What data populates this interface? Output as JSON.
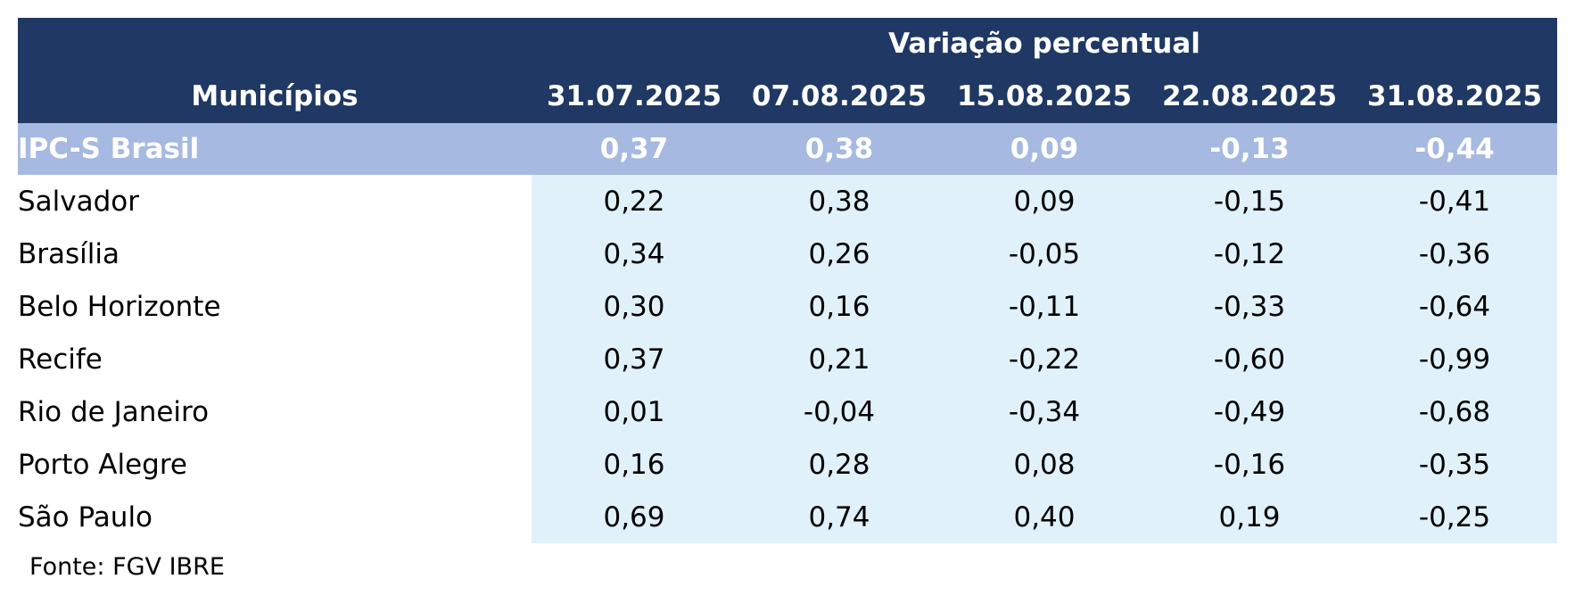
{
  "chart_data": {
    "type": "table",
    "group_header": "Variação percentual",
    "row_header": "Municípios",
    "columns": [
      "31.07.2025",
      "07.08.2025",
      "15.08.2025",
      "22.08.2025",
      "31.08.2025"
    ],
    "summary_row": {
      "name": "IPC-S Brasil",
      "values": [
        "0,37",
        "0,38",
        "0,09",
        "-0,13",
        "-0,44"
      ]
    },
    "rows": [
      {
        "name": "Salvador",
        "values": [
          "0,22",
          "0,38",
          "0,09",
          "-0,15",
          "-0,41"
        ]
      },
      {
        "name": "Brasília",
        "values": [
          "0,34",
          "0,26",
          "-0,05",
          "-0,12",
          "-0,36"
        ]
      },
      {
        "name": "Belo Horizonte",
        "values": [
          "0,30",
          "0,16",
          "-0,11",
          "-0,33",
          "-0,64"
        ]
      },
      {
        "name": "Recife",
        "values": [
          "0,37",
          "0,21",
          "-0,22",
          "-0,60",
          "-0,99"
        ]
      },
      {
        "name": "Rio de Janeiro",
        "values": [
          "0,01",
          "-0,04",
          "-0,34",
          "-0,49",
          "-0,68"
        ]
      },
      {
        "name": "Porto Alegre",
        "values": [
          "0,16",
          "0,28",
          "0,08",
          "-0,16",
          "-0,35"
        ]
      },
      {
        "name": "São Paulo",
        "values": [
          "0,69",
          "0,74",
          "0,40",
          "0,19",
          "-0,25"
        ]
      }
    ],
    "source": "Fonte: FGV IBRE"
  },
  "colors": {
    "header_bg": "#1f3864",
    "summary_bg": "#a6b9e0",
    "value_cell_bg": "#e1f1f9",
    "header_text": "#ffffff"
  }
}
